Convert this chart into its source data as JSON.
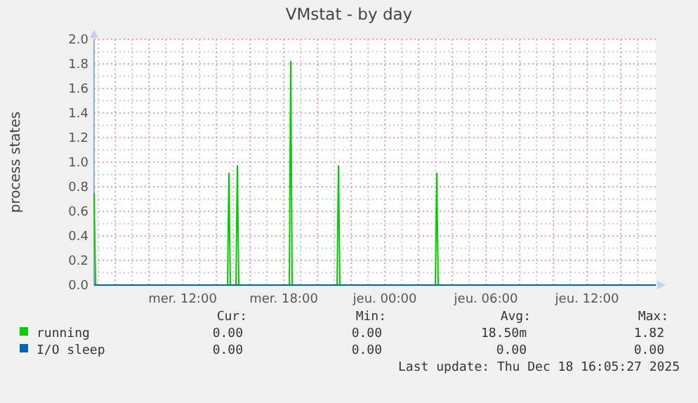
{
  "chart_data": {
    "type": "line",
    "title": "VMstat - by day",
    "ylabel": "process states",
    "x": [
      "2025-12-17T06:45",
      "2025-12-17T06:50",
      "2025-12-17T14:40",
      "2025-12-17T14:45",
      "2025-12-17T14:50",
      "2025-12-17T15:10",
      "2025-12-17T15:15",
      "2025-12-17T15:20",
      "2025-12-17T18:20",
      "2025-12-17T18:25",
      "2025-12-17T18:30",
      "2025-12-17T21:10",
      "2025-12-17T21:15",
      "2025-12-17T21:20",
      "2025-12-18T03:00",
      "2025-12-18T03:05",
      "2025-12-18T03:10",
      "2025-12-18T16:05"
    ],
    "series": [
      {
        "name": "running",
        "color": "#00cc00",
        "values": [
          0.75,
          0,
          0,
          0.91,
          0,
          0,
          0.97,
          0,
          0,
          1.82,
          0,
          0,
          0.97,
          0,
          0,
          0.91,
          0,
          0
        ]
      },
      {
        "name": "I/O sleep",
        "color": "#0066b3",
        "values": [
          0,
          0,
          0,
          0,
          0,
          0,
          0,
          0,
          0,
          0,
          0,
          0,
          0,
          0,
          0,
          0,
          0,
          0
        ]
      }
    ],
    "xlim": [
      "2025-12-17T06:45",
      "2025-12-18T16:05"
    ],
    "xticks": [
      {
        "value": "2025-12-17T08:00",
        "label": null
      },
      {
        "value": "2025-12-17T10:00",
        "label": null
      },
      {
        "value": "2025-12-17T12:00",
        "label": "mer. 12:00"
      },
      {
        "value": "2025-12-17T14:00",
        "label": null
      },
      {
        "value": "2025-12-17T16:00",
        "label": null
      },
      {
        "value": "2025-12-17T18:00",
        "label": "mer. 18:00"
      },
      {
        "value": "2025-12-17T20:00",
        "label": null
      },
      {
        "value": "2025-12-17T22:00",
        "label": null
      },
      {
        "value": "2025-12-18T00:00",
        "label": "jeu. 00:00"
      },
      {
        "value": "2025-12-18T02:00",
        "label": null
      },
      {
        "value": "2025-12-18T04:00",
        "label": null
      },
      {
        "value": "2025-12-18T06:00",
        "label": "jeu. 06:00"
      },
      {
        "value": "2025-12-18T08:00",
        "label": null
      },
      {
        "value": "2025-12-18T10:00",
        "label": null
      },
      {
        "value": "2025-12-18T12:00",
        "label": "jeu. 12:00"
      },
      {
        "value": "2025-12-18T14:00",
        "label": null
      }
    ],
    "ylim": [
      0,
      2
    ],
    "yticks": [
      {
        "value": 0,
        "label": "0.0"
      },
      0.2,
      0.4,
      0.6,
      0.8,
      {
        "value": 1,
        "label": "1.0"
      },
      1.2,
      1.4,
      1.6,
      1.8,
      {
        "value": 2,
        "label": "2.0"
      }
    ],
    "grid": true,
    "legend": "bottom",
    "marker": "none",
    "line_style": "solid",
    "annotations": [
      "Cur:",
      "Min:",
      "Avg:",
      "Max:",
      "0.00",
      "0.00",
      "18.50m",
      "1.82",
      "0.00",
      "0.00",
      "0.00",
      "0.00",
      "Last update: Thu Dec 18 16:05:27 2025"
    ]
  }
}
